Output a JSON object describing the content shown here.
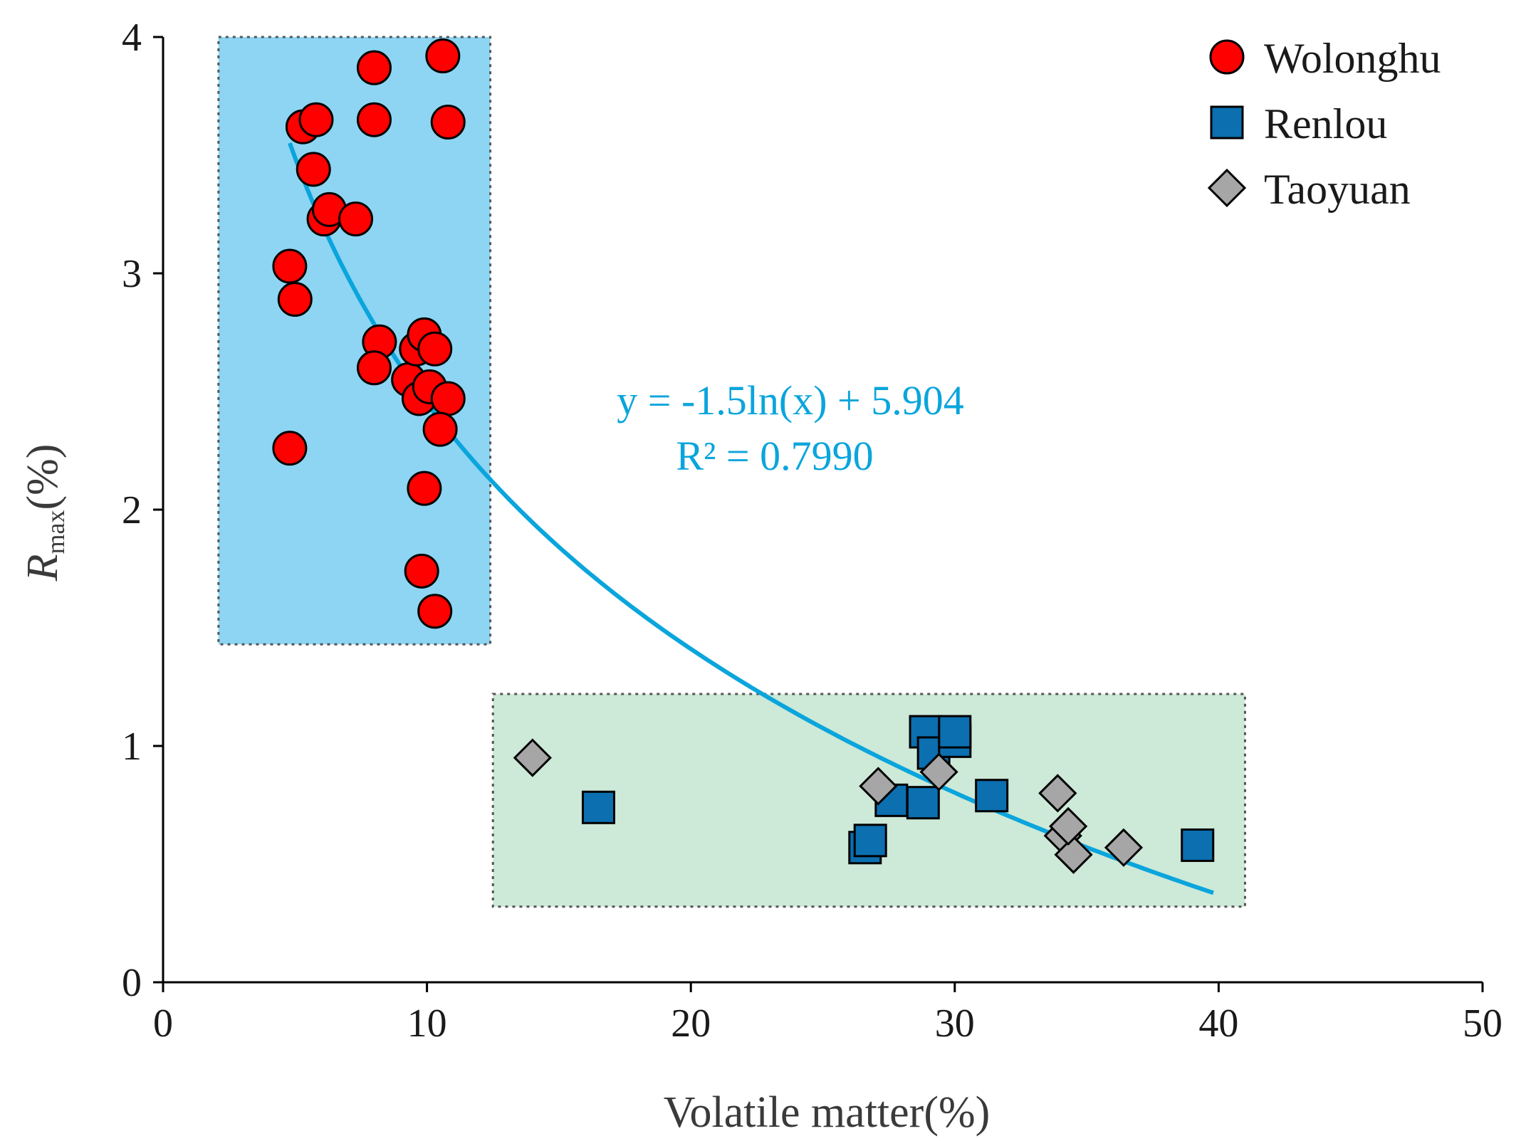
{
  "chart_data": {
    "type": "scatter",
    "title": "",
    "xlabel": "Volatile matter(%)",
    "ylabel": {
      "main": "R",
      "subscript": "max",
      "suffix": "(%)"
    },
    "xlim": [
      0,
      50
    ],
    "ylim": [
      0,
      4
    ],
    "x_ticks": [
      "0",
      "10",
      "20",
      "30",
      "40",
      "50"
    ],
    "y_ticks": [
      "0",
      "1",
      "2",
      "3",
      "4"
    ],
    "grid": false,
    "legend_position": "top-right",
    "series": [
      {
        "name": "Wolonghu",
        "marker": "circle",
        "color": "#ff0000",
        "points": [
          [
            4.8,
            3.03
          ],
          [
            5.0,
            2.89
          ],
          [
            5.3,
            3.62
          ],
          [
            5.8,
            3.65
          ],
          [
            5.7,
            3.44
          ],
          [
            6.1,
            3.23
          ],
          [
            6.3,
            3.27
          ],
          [
            7.3,
            3.23
          ],
          [
            4.8,
            2.26
          ],
          [
            8.0,
            3.87
          ],
          [
            8.0,
            3.65
          ],
          [
            8.2,
            2.71
          ],
          [
            8.0,
            2.6
          ],
          [
            9.3,
            2.55
          ],
          [
            9.6,
            2.68
          ],
          [
            9.7,
            2.47
          ],
          [
            9.9,
            2.74
          ],
          [
            10.1,
            2.52
          ],
          [
            10.3,
            2.68
          ],
          [
            10.8,
            2.47
          ],
          [
            10.5,
            2.34
          ],
          [
            9.9,
            2.09
          ],
          [
            9.8,
            1.74
          ],
          [
            10.3,
            1.57
          ],
          [
            10.6,
            3.92
          ],
          [
            10.8,
            3.64
          ]
        ]
      },
      {
        "name": "Renlou",
        "marker": "square",
        "color": "#0b6fb0",
        "points": [
          [
            16.5,
            0.74
          ],
          [
            26.6,
            0.57
          ],
          [
            26.8,
            0.6
          ],
          [
            27.6,
            0.77
          ],
          [
            28.8,
            0.76
          ],
          [
            28.9,
            1.06
          ],
          [
            29.2,
            0.97
          ],
          [
            30.0,
            1.02
          ],
          [
            30.0,
            1.06
          ],
          [
            31.4,
            0.79
          ],
          [
            39.2,
            0.58
          ]
        ]
      },
      {
        "name": "Taoyuan",
        "marker": "diamond",
        "color": "#a6a6a6",
        "points": [
          [
            14.0,
            0.95
          ],
          [
            27.1,
            0.83
          ],
          [
            29.4,
            0.89
          ],
          [
            33.9,
            0.8
          ],
          [
            34.1,
            0.62
          ],
          [
            34.5,
            0.54
          ],
          [
            34.3,
            0.66
          ],
          [
            36.4,
            0.57
          ]
        ]
      }
    ],
    "fit": {
      "equation": "y = -1.5ln(x) + 5.904",
      "r2_text": "R² = 0.7990",
      "a": -1.5,
      "b": 5.904,
      "x_range": [
        4.8,
        39.8
      ],
      "color": "#0aa5dc"
    },
    "regions": [
      {
        "name": "high-rank-region",
        "x_range": [
          2.1,
          12.4
        ],
        "y_range": [
          1.43,
          4.0
        ],
        "fill": "#8dd5f2"
      },
      {
        "name": "low-rank-region",
        "x_range": [
          12.5,
          41.0
        ],
        "y_range": [
          0.32,
          1.22
        ],
        "fill": "#cde9d8"
      }
    ]
  }
}
